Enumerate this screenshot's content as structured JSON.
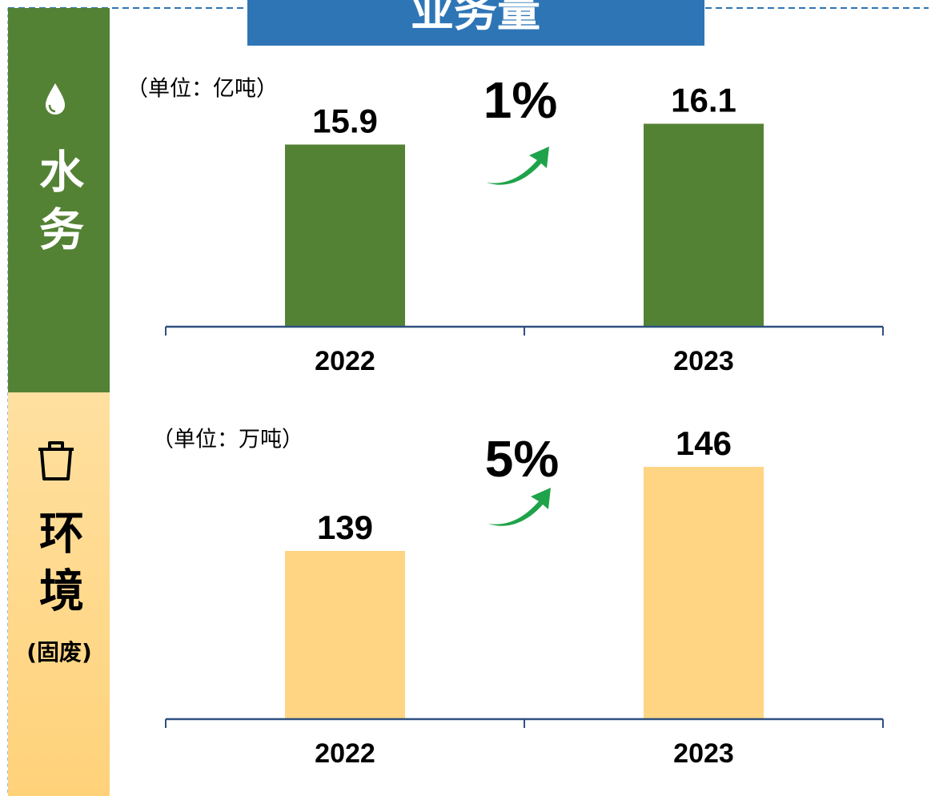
{
  "title": "业务量",
  "chart_data": [
    {
      "type": "bar",
      "section": "水务",
      "unit": "（单位：亿吨）",
      "annotation": "1%",
      "categories": [
        "2022",
        "2023"
      ],
      "values": [
        15.9,
        16.1
      ],
      "color": "#548235",
      "ylim": [
        14.15,
        16.5
      ]
    },
    {
      "type": "bar",
      "section": "环境",
      "subsection": "(固废)",
      "unit": "（单位：万吨）",
      "annotation": "5%",
      "categories": [
        "2022",
        "2023"
      ],
      "values": [
        139,
        146
      ],
      "color": "#ffd584",
      "ylim": [
        125,
        147
      ]
    }
  ]
}
